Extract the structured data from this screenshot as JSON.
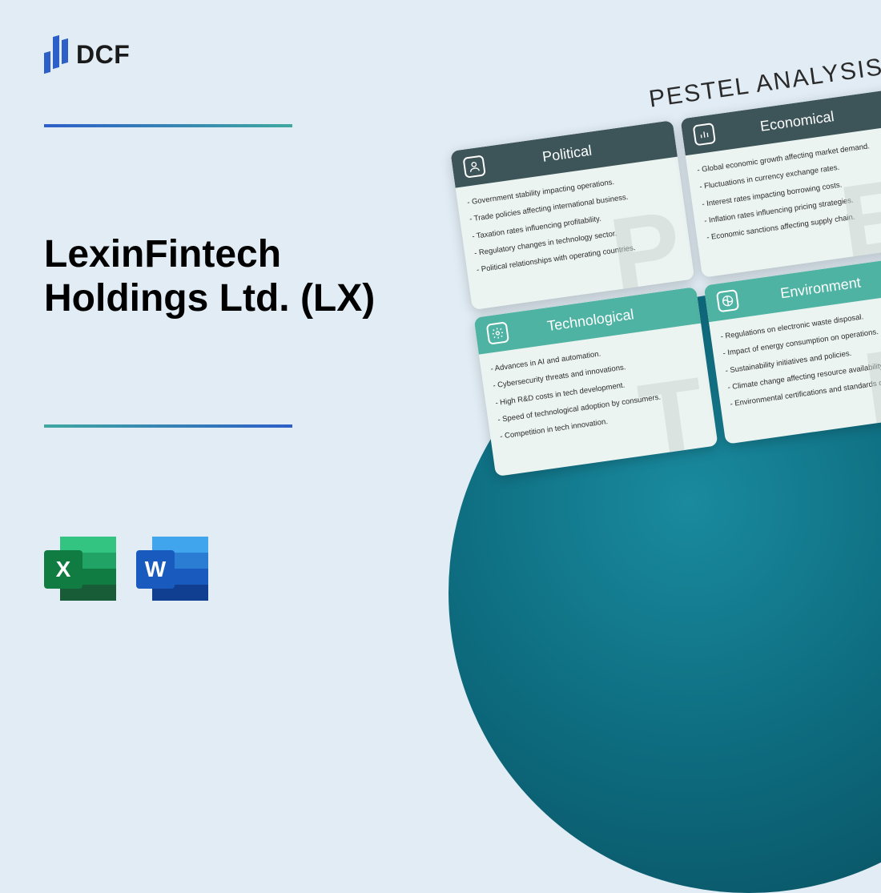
{
  "logo": {
    "text": "DCF"
  },
  "title": "LexinFintech\nHoldings Ltd. (LX)",
  "fileIcons": {
    "excel": "X",
    "word": "W"
  },
  "pestel": {
    "heading": "PESTEL ANALYSIS",
    "cards": [
      {
        "label": "Political",
        "watermark": "P",
        "icon": "person",
        "tone": "dark",
        "items": [
          "- Government stability impacting operations.",
          "- Trade policies affecting international business.",
          "- Taxation rates influencing profitability.",
          "- Regulatory changes in technology sector.",
          "- Political relationships with operating countries."
        ]
      },
      {
        "label": "Economical",
        "watermark": "E",
        "icon": "chart",
        "tone": "dark",
        "items": [
          "- Global economic growth affecting market demand.",
          "- Fluctuations in currency exchange rates.",
          "- Interest rates impacting borrowing costs.",
          "- Inflation rates influencing pricing strategies.",
          "- Economic sanctions affecting supply chain."
        ]
      },
      {
        "label": "Technological",
        "watermark": "T",
        "icon": "gear",
        "tone": "light",
        "items": [
          "- Advances in AI and automation.",
          "- Cybersecurity threats and innovations.",
          "- High R&D costs in tech development.",
          "- Speed of technological adoption by consumers.",
          "- Competition in tech innovation."
        ]
      },
      {
        "label": "Environment",
        "watermark": "E",
        "icon": "leaf",
        "tone": "light",
        "items": [
          "- Regulations on electronic waste disposal.",
          "- Impact of energy consumption on operations.",
          "- Sustainability initiatives and policies.",
          "- Climate change affecting resource availability.",
          "- Environmental certifications and standards compliance."
        ]
      }
    ]
  }
}
